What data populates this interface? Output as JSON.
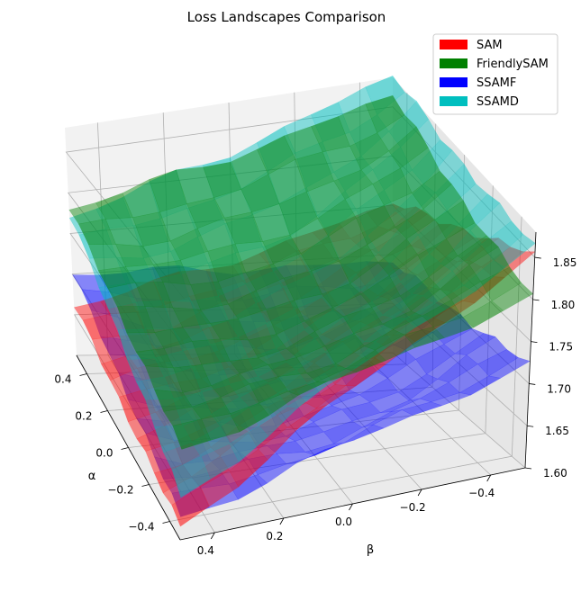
{
  "chart_data": {
    "type": "surface3d",
    "title": "Loss Landscapes Comparison",
    "xlabel": "α",
    "ylabel": "β",
    "zlabel": "",
    "x_ticks": [
      "−0.4",
      "−0.2",
      "0.0",
      "0.2",
      "0.4"
    ],
    "y_ticks": [
      "−0.4",
      "−0.2",
      "0.0",
      "0.2",
      "0.4"
    ],
    "z_ticks": [
      "1.60",
      "1.65",
      "1.70",
      "1.75",
      "1.80",
      "1.85"
    ],
    "xlim": [
      -0.5,
      0.5
    ],
    "ylim": [
      -0.5,
      0.5
    ],
    "zlim": [
      1.6,
      1.88
    ],
    "grid": true,
    "legend_position": "top-right",
    "series": [
      {
        "name": "SAM",
        "color": "#ff0000",
        "corners": {
          "a_pos_b_pos": 1.66,
          "a_neg_b_pos": 1.61,
          "a_pos_b_neg": 1.75,
          "a_neg_b_neg": 1.85
        },
        "center": 1.69
      },
      {
        "name": "FriendlySAM",
        "color": "#008000",
        "corners": {
          "a_pos_b_pos": 1.78,
          "a_neg_b_pos": 1.69,
          "a_pos_b_neg": 1.86,
          "a_neg_b_neg": 1.8
        },
        "center": 1.74
      },
      {
        "name": "SSAMF",
        "color": "#0000ff",
        "corners": {
          "a_pos_b_pos": 1.7,
          "a_neg_b_pos": 1.62,
          "a_pos_b_neg": 1.69,
          "a_neg_b_neg": 1.72
        },
        "center": 1.63
      },
      {
        "name": "SSAMD",
        "color": "#00bfbf",
        "corners": {
          "a_pos_b_pos": 1.77,
          "a_neg_b_pos": 1.64,
          "a_pos_b_neg": 1.88,
          "a_neg_b_neg": 1.86
        },
        "center": 1.73
      }
    ]
  }
}
